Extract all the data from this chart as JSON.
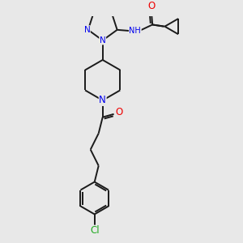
{
  "bg_color": "#e8e8e8",
  "bond_color": "#1a1a1a",
  "bond_width": 1.4,
  "atom_colors": {
    "N": "#0000ee",
    "O": "#ee0000",
    "Cl": "#22aa22",
    "H": "#444444"
  },
  "font_size": 7.5
}
